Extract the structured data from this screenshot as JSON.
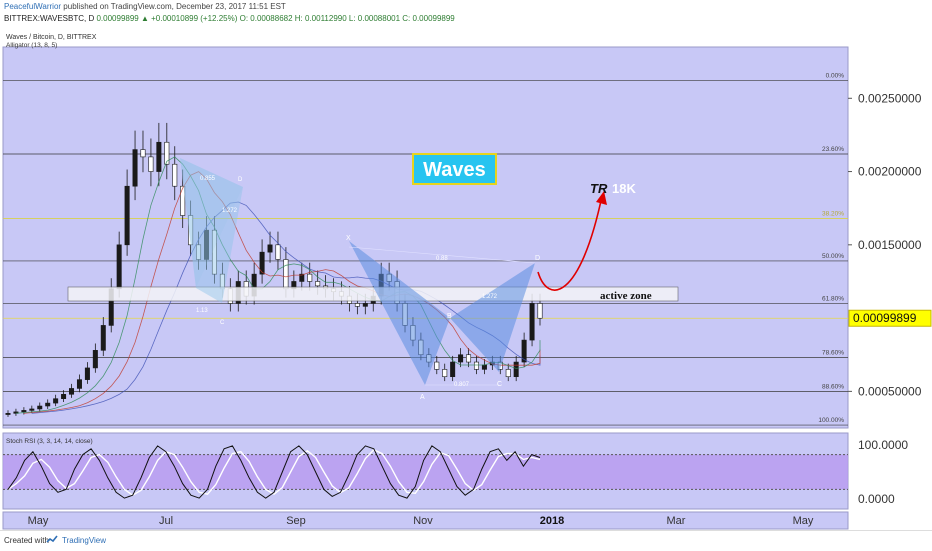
{
  "header": {
    "author": "PeacefulWarrior",
    "published": "published on TradingView.com, December 23, 2017 11:51 EST",
    "symbol": "BITTREX:WAVESBTC, D",
    "ohlc": "0.00099899 ▲ +0.00010899 (+12.25%) O: 0.00088682 H: 0.00112990 L: 0.00088001 C: 0.00099899"
  },
  "chart_data": {
    "type": "candlestick",
    "title": "Waves / Bitcoin, D, BITTREX",
    "indicator": "Alligator (13, 8, 5)",
    "ylim": [
      0.00025,
      0.00285
    ],
    "price_ticks": [
      "0.00250000",
      "0.00200000",
      "0.00150000",
      "0.00050000"
    ],
    "price_tick_values": [
      0.0025,
      0.002,
      0.0015,
      0.0005
    ],
    "last_price": "0.00099899",
    "last_price_value": 0.00099899,
    "x_ticks": [
      "May",
      "Jul",
      "Sep",
      "Nov",
      "2018",
      "Mar",
      "May"
    ],
    "fib_levels": [
      {
        "label": "0.00%",
        "value": 0.00262
      },
      {
        "label": "23.60%",
        "value": 0.00212
      },
      {
        "label": "38.20%",
        "value": 0.00168
      },
      {
        "label": "50.00%",
        "value": 0.00139
      },
      {
        "label": "61.80%",
        "value": 0.0011
      },
      {
        "label": "78.60%",
        "value": 0.00073
      },
      {
        "label": "88.60%",
        "value": 0.0005
      },
      {
        "label": "100.00%",
        "value": 0.00027
      }
    ],
    "annotations": {
      "logo": "Waves",
      "target_prefix": "TR",
      "target_suffix": "18K",
      "zone": "active zone",
      "pattern_points": [
        "X",
        "A",
        "B",
        "C",
        "D"
      ],
      "ratios": [
        "0.886",
        "1.13",
        "0.88",
        "0.807",
        "1.272"
      ],
      "first_pattern_ratios": [
        "0.855",
        "1.272"
      ],
      "first_pattern_point": "D",
      "first_pattern_points": [
        "C"
      ]
    },
    "closes": [
      0.00035,
      0.00036,
      0.00037,
      0.00038,
      0.0004,
      0.00042,
      0.00045,
      0.00048,
      0.00052,
      0.00058,
      0.00066,
      0.00078,
      0.00095,
      0.0012,
      0.0015,
      0.0019,
      0.00215,
      0.0021,
      0.002,
      0.0022,
      0.00205,
      0.0019,
      0.0017,
      0.0015,
      0.0014,
      0.0016,
      0.0013,
      0.0012,
      0.0011,
      0.00125,
      0.00115,
      0.0013,
      0.00145,
      0.0015,
      0.0014,
      0.0012,
      0.00125,
      0.0013,
      0.00125,
      0.00122,
      0.0012,
      0.00118,
      0.00115,
      0.0011,
      0.00108,
      0.0011,
      0.00115,
      0.0013,
      0.00125,
      0.0011,
      0.00095,
      0.00085,
      0.00075,
      0.0007,
      0.00065,
      0.0006,
      0.0007,
      0.00075,
      0.0007,
      0.00065,
      0.00068,
      0.0007,
      0.00065,
      0.0006,
      0.0007,
      0.00085,
      0.0011,
      0.000999
    ],
    "stoch_rsi": {
      "label": "Stoch RSI (3, 3, 14, 14, close)",
      "ticks": [
        "100.0000",
        "0.0000"
      ],
      "k": [
        20,
        40,
        70,
        85,
        60,
        30,
        15,
        20,
        55,
        80,
        90,
        70,
        40,
        15,
        5,
        10,
        40,
        75,
        95,
        85,
        60,
        30,
        10,
        5,
        20,
        60,
        90,
        95,
        70,
        40,
        15,
        5,
        15,
        50,
        85,
        95,
        80,
        50,
        20,
        8,
        15,
        45,
        80,
        95,
        90,
        60,
        30,
        10,
        5,
        25,
        70,
        95,
        85,
        55,
        25,
        10,
        20,
        55,
        85,
        90,
        70,
        85,
        60,
        80,
        75
      ]
    }
  }
}
